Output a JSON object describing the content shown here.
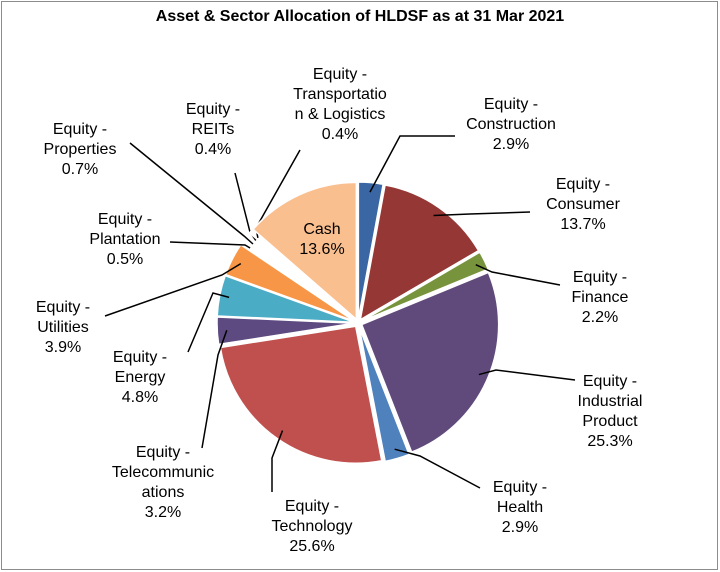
{
  "chart_data": {
    "type": "pie",
    "title": "Asset & Sector Allocation of HLDSF as at 31 Mar 2021",
    "categories": [
      "Equity - Construction",
      "Equity - Consumer",
      "Equity - Finance",
      "Equity - Industrial Product",
      "Equity - Health",
      "Equity - Technology",
      "Equity - Telecommunications",
      "Equity - Energy",
      "Equity - Utilities",
      "Equity - Plantation",
      "Equity - Properties",
      "Equity - REITs",
      "Equity - Transportation & Logistics",
      "Cash"
    ],
    "values": [
      2.9,
      13.7,
      2.2,
      25.3,
      2.9,
      25.6,
      3.2,
      4.8,
      3.9,
      0.5,
      0.7,
      0.4,
      0.4,
      13.6
    ],
    "value_labels": [
      "2.9%",
      "13.7%",
      "2.2%",
      "25.3%",
      "2.9%",
      "25.6%",
      "3.2%",
      "4.8%",
      "3.9%",
      "0.5%",
      "0.7%",
      "0.4%",
      "0.4%",
      "13.6%"
    ],
    "colors": [
      "#3a67a3",
      "#953735",
      "#77933c",
      "#604a7b",
      "#4f81bd",
      "#c0504d",
      "#5c4a80",
      "#4bacc6",
      "#f79646",
      "#ffffff",
      "#ffffff",
      "#ffffff",
      "#ffffff",
      "#fabf8f"
    ]
  }
}
